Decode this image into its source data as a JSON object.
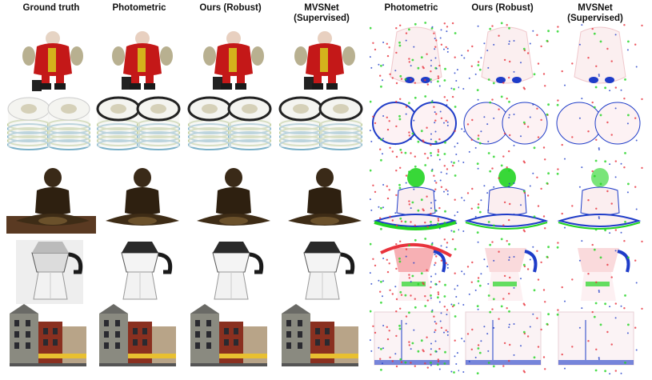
{
  "headers": [
    "Ground truth",
    "Photometric",
    "Ours (Robust)",
    "MVSNet\n(Supervised)",
    "Photometric",
    "Ours (Robust)",
    "MVSNet\n(Supervised)"
  ],
  "rows": [
    {
      "subject": "costumed-figure"
    },
    {
      "subject": "stacked-dishes"
    },
    {
      "subject": "meditating-statue"
    },
    {
      "subject": "moka-pot"
    },
    {
      "subject": "building-facade"
    }
  ],
  "colors": {
    "error_red": "#e8323c",
    "error_green": "#22d422",
    "error_blue": "#1e3cc8",
    "error_pink": "#f6c6cc"
  }
}
